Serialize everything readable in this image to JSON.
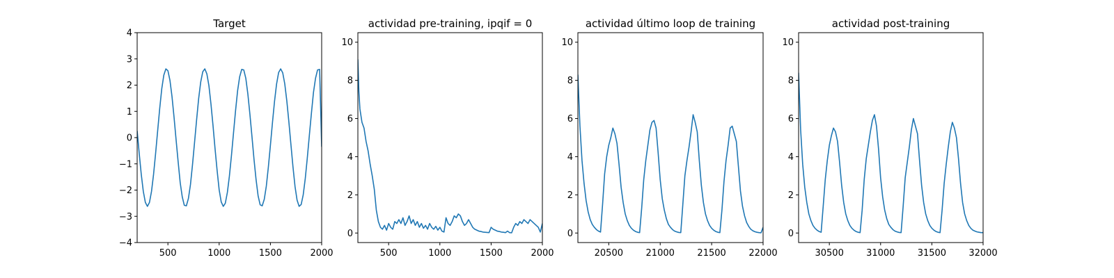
{
  "chart_data": [
    {
      "type": "line",
      "title": "Target",
      "xlabel": "",
      "ylabel": "",
      "xlim": [
        200,
        2000
      ],
      "ylim": [
        -4,
        4
      ],
      "xticks": [
        500,
        1000,
        1500,
        2000
      ],
      "yticks": [
        -4,
        -3,
        -2,
        -1,
        0,
        1,
        2,
        3,
        4
      ],
      "color": "#1f77b4",
      "grid": false,
      "series": [
        {
          "x": [
            200,
            220,
            240,
            260,
            280,
            300,
            320,
            340,
            360,
            380,
            400,
            420,
            440,
            460,
            480,
            500,
            520,
            540,
            560,
            580,
            600,
            620,
            640,
            660,
            680,
            700,
            720,
            740,
            760,
            780,
            800,
            820,
            840,
            860,
            880,
            900,
            920,
            940,
            960,
            980,
            1000,
            1020,
            1040,
            1060,
            1080,
            1100,
            1120,
            1140,
            1160,
            1180,
            1200,
            1220,
            1240,
            1260,
            1280,
            1300,
            1320,
            1340,
            1360,
            1380,
            1400,
            1420,
            1440,
            1460,
            1480,
            1500,
            1520,
            1540,
            1560,
            1580,
            1600,
            1620,
            1640,
            1660,
            1680,
            1700,
            1720,
            1740,
            1760,
            1780,
            1800,
            1820,
            1840,
            1860,
            1880,
            1900,
            1920,
            1940,
            1960,
            1980,
            2000
          ],
          "y": [
            0.26,
            -0.6,
            -1.4,
            -2.05,
            -2.47,
            -2.62,
            -2.47,
            -2.05,
            -1.4,
            -0.6,
            0.26,
            1.11,
            1.86,
            2.38,
            2.62,
            2.55,
            2.18,
            1.56,
            0.77,
            -0.09,
            -0.93,
            -1.72,
            -2.26,
            -2.58,
            -2.6,
            -2.32,
            -1.79,
            -1.03,
            -0.18,
            0.68,
            1.49,
            2.12,
            2.51,
            2.62,
            2.43,
            1.98,
            1.28,
            0.46,
            -0.43,
            -1.25,
            -1.99,
            -2.45,
            -2.62,
            -2.5,
            -2.09,
            -1.46,
            -0.68,
            0.18,
            1.03,
            1.79,
            2.32,
            2.6,
            2.58,
            2.26,
            1.66,
            0.89,
            0.04,
            -0.83,
            -1.6,
            -2.22,
            -2.56,
            -2.6,
            -2.35,
            -1.85,
            -1.12,
            -0.29,
            0.57,
            1.38,
            2.04,
            2.48,
            2.62,
            2.47,
            2.05,
            1.4,
            0.6,
            -0.26,
            -1.11,
            -1.86,
            -2.38,
            -2.62,
            -2.55,
            -2.18,
            -1.56,
            -0.77,
            0.09,
            0.93,
            1.72,
            2.26,
            2.58,
            2.6,
            -0.35
          ]
        }
      ]
    },
    {
      "type": "line",
      "title": "actividad pre-training, ipqif = 0",
      "xlabel": "",
      "ylabel": "",
      "xlim": [
        200,
        2000
      ],
      "ylim": [
        -0.5,
        10.5
      ],
      "xticks": [
        500,
        1000,
        1500,
        2000
      ],
      "yticks": [
        0,
        2,
        4,
        6,
        8,
        10
      ],
      "color": "#1f77b4",
      "grid": false,
      "series": [
        {
          "x": [
            200,
            210,
            220,
            240,
            260,
            280,
            300,
            320,
            340,
            360,
            380,
            400,
            420,
            440,
            460,
            480,
            500,
            520,
            540,
            560,
            580,
            600,
            620,
            640,
            660,
            680,
            700,
            720,
            740,
            760,
            780,
            800,
            820,
            840,
            860,
            880,
            900,
            920,
            940,
            960,
            980,
            1000,
            1020,
            1040,
            1060,
            1080,
            1100,
            1120,
            1140,
            1160,
            1180,
            1200,
            1220,
            1240,
            1260,
            1280,
            1300,
            1320,
            1340,
            1360,
            1380,
            1400,
            1420,
            1440,
            1460,
            1480,
            1500,
            1520,
            1540,
            1560,
            1580,
            1600,
            1620,
            1640,
            1660,
            1680,
            1700,
            1720,
            1740,
            1760,
            1780,
            1800,
            1820,
            1840,
            1860,
            1880,
            1900,
            1920,
            1940,
            1960,
            1980,
            2000
          ],
          "y": [
            9.1,
            7.4,
            6.5,
            5.8,
            5.5,
            4.8,
            4.3,
            3.6,
            3.0,
            2.3,
            1.2,
            0.6,
            0.3,
            0.2,
            0.4,
            0.15,
            0.5,
            0.3,
            0.2,
            0.6,
            0.5,
            0.7,
            0.5,
            0.8,
            0.4,
            0.6,
            0.9,
            0.5,
            0.7,
            0.4,
            0.6,
            0.3,
            0.5,
            0.25,
            0.4,
            0.2,
            0.5,
            0.3,
            0.2,
            0.35,
            0.15,
            0.3,
            0.1,
            0.05,
            0.8,
            0.5,
            0.4,
            0.6,
            0.9,
            0.8,
            1.0,
            0.9,
            0.6,
            0.4,
            0.5,
            0.7,
            0.5,
            0.3,
            0.2,
            0.15,
            0.1,
            0.08,
            0.05,
            0.04,
            0.03,
            0.02,
            0.3,
            0.2,
            0.15,
            0.1,
            0.08,
            0.05,
            0.04,
            0.02,
            0.1,
            0.02,
            0.01,
            0.3,
            0.5,
            0.4,
            0.6,
            0.5,
            0.7,
            0.6,
            0.5,
            0.7,
            0.6,
            0.5,
            0.4,
            0.3,
            0.05,
            0.5
          ]
        }
      ]
    },
    {
      "type": "line",
      "title": "actividad último loop de training",
      "xlabel": "",
      "ylabel": "",
      "xlim": [
        20200,
        22000
      ],
      "ylim": [
        -0.5,
        10.5
      ],
      "xticks": [
        20500,
        21000,
        21500,
        22000
      ],
      "yticks": [
        0,
        2,
        4,
        6,
        8,
        10
      ],
      "color": "#1f77b4",
      "grid": false,
      "series": [
        {
          "x": [
            20200,
            20220,
            20240,
            20260,
            20280,
            20300,
            20320,
            20340,
            20360,
            20380,
            20400,
            20420,
            20440,
            20460,
            20480,
            20500,
            20520,
            20540,
            20560,
            20580,
            20600,
            20620,
            20640,
            20660,
            20680,
            20700,
            20720,
            20740,
            20760,
            20780,
            20800,
            20820,
            20840,
            20860,
            20880,
            20900,
            20920,
            20940,
            20960,
            20980,
            21000,
            21020,
            21040,
            21060,
            21080,
            21100,
            21120,
            21140,
            21160,
            21180,
            21200,
            21220,
            21240,
            21260,
            21280,
            21300,
            21320,
            21340,
            21360,
            21380,
            21400,
            21420,
            21440,
            21460,
            21480,
            21500,
            21520,
            21540,
            21560,
            21580,
            21600,
            21620,
            21640,
            21660,
            21680,
            21700,
            21720,
            21740,
            21760,
            21780,
            21800,
            21820,
            21840,
            21860,
            21880,
            21900,
            21920,
            21940,
            21960,
            21980,
            22000
          ],
          "y": [
            8.3,
            5.6,
            3.8,
            2.6,
            1.7,
            1.1,
            0.7,
            0.45,
            0.3,
            0.18,
            0.1,
            0.05,
            1.5,
            3.1,
            4.0,
            4.6,
            5.0,
            5.5,
            5.2,
            4.7,
            3.6,
            2.4,
            1.6,
            1.0,
            0.65,
            0.4,
            0.25,
            0.15,
            0.08,
            0.04,
            0.02,
            1.3,
            2.8,
            3.8,
            4.6,
            5.4,
            5.8,
            5.9,
            5.5,
            4.2,
            2.8,
            1.8,
            1.2,
            0.75,
            0.45,
            0.3,
            0.18,
            0.1,
            0.06,
            0.03,
            0.02,
            1.5,
            3.0,
            3.8,
            4.5,
            5.3,
            6.2,
            5.8,
            5.3,
            3.8,
            2.5,
            1.6,
            1.0,
            0.65,
            0.4,
            0.25,
            0.15,
            0.08,
            0.04,
            0.02,
            1.2,
            2.7,
            3.8,
            4.6,
            5.5,
            5.6,
            5.2,
            4.8,
            3.5,
            2.2,
            1.4,
            0.9,
            0.55,
            0.35,
            0.2,
            0.12,
            0.07,
            0.04,
            0.02,
            0.01,
            0.3
          ]
        }
      ]
    },
    {
      "type": "line",
      "title": "actividad post-training",
      "xlabel": "",
      "ylabel": "",
      "xlim": [
        30200,
        32000
      ],
      "ylim": [
        -0.5,
        10.5
      ],
      "xticks": [
        30500,
        31000,
        31500,
        32000
      ],
      "yticks": [
        0,
        2,
        4,
        6,
        8,
        10
      ],
      "color": "#1f77b4",
      "grid": false,
      "series": [
        {
          "x": [
            30200,
            30220,
            30240,
            30260,
            30280,
            30300,
            30320,
            30340,
            30360,
            30380,
            30400,
            30420,
            30440,
            30460,
            30480,
            30500,
            30520,
            30540,
            30560,
            30580,
            30600,
            30620,
            30640,
            30660,
            30680,
            30700,
            30720,
            30740,
            30760,
            30780,
            30800,
            30820,
            30840,
            30860,
            30880,
            30900,
            30920,
            30940,
            30960,
            30980,
            31000,
            31020,
            31040,
            31060,
            31080,
            31100,
            31120,
            31140,
            31160,
            31180,
            31200,
            31220,
            31240,
            31260,
            31280,
            31300,
            31320,
            31340,
            31360,
            31380,
            31400,
            31420,
            31440,
            31460,
            31480,
            31500,
            31520,
            31540,
            31560,
            31580,
            31600,
            31620,
            31640,
            31660,
            31680,
            31700,
            31720,
            31740,
            31760,
            31780,
            31800,
            31820,
            31840,
            31860,
            31880,
            31900,
            31920,
            31940,
            31960,
            31980,
            32000
          ],
          "y": [
            8.4,
            5.4,
            3.6,
            2.4,
            1.6,
            1.0,
            0.65,
            0.4,
            0.25,
            0.15,
            0.08,
            0.04,
            1.4,
            2.8,
            3.8,
            4.6,
            5.1,
            5.5,
            5.3,
            4.8,
            3.7,
            2.5,
            1.6,
            1.0,
            0.65,
            0.4,
            0.25,
            0.15,
            0.08,
            0.04,
            0.02,
            1.2,
            2.8,
            3.9,
            4.6,
            5.3,
            5.9,
            6.2,
            5.6,
            4.4,
            2.9,
            1.9,
            1.2,
            0.75,
            0.45,
            0.3,
            0.18,
            0.1,
            0.06,
            0.03,
            0.02,
            1.4,
            2.9,
            3.7,
            4.5,
            5.4,
            6.0,
            5.6,
            5.2,
            3.8,
            2.5,
            1.6,
            1.0,
            0.65,
            0.4,
            0.25,
            0.15,
            0.08,
            0.04,
            0.02,
            1.2,
            2.6,
            3.6,
            4.5,
            5.3,
            5.8,
            5.5,
            5.0,
            3.9,
            2.6,
            1.6,
            1.0,
            0.65,
            0.4,
            0.25,
            0.15,
            0.1,
            0.06,
            0.04,
            0.02,
            0.02
          ]
        }
      ]
    }
  ]
}
